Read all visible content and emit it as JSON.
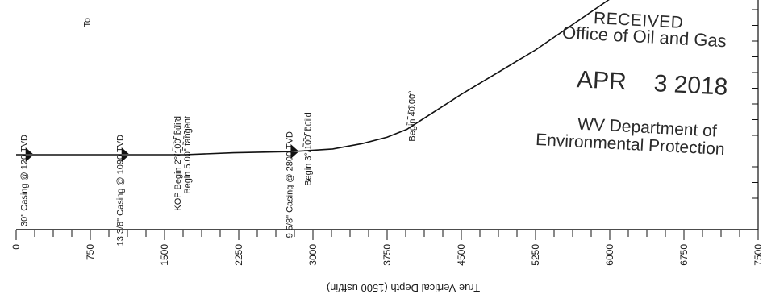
{
  "chart_data": {
    "type": "line",
    "xlabel": "True Vertical Depth (1500 usft/in)",
    "xticks": [
      "0",
      "750",
      "1500",
      "2250",
      "3000",
      "3750",
      "4500",
      "5250",
      "6000",
      "6750",
      "7500"
    ],
    "xlim": [
      0,
      7500
    ],
    "series": [
      {
        "x": [
          0,
          1500,
          1700,
          2200,
          2800,
          2900,
          3200,
          3500,
          3750,
          3950,
          4500,
          5250,
          6000
        ],
        "y": [
          0,
          0,
          0,
          6,
          10,
          12,
          18,
          35,
          55,
          80,
          190,
          330,
          490
        ]
      }
    ],
    "annotations": [
      {
        "label": "30\" Casing @ 120 TVD",
        "x": 120,
        "casing": true
      },
      {
        "label": "13 3/8\" Casing @ 1090 TVD",
        "x": 1090,
        "casing": true
      },
      {
        "label": "KOP Begin 2°/100' build",
        "x": 1580,
        "casing": false
      },
      {
        "label": "Begin 5.00° tangent",
        "x": 1680,
        "casing": false
      },
      {
        "label": "9 5/8\" Casing @ 2800 TVD",
        "x": 2800,
        "casing": true
      },
      {
        "label": "Begin 3°/100' build",
        "x": 2900,
        "casing": false
      },
      {
        "label": "Begin 40.00°",
        "x": 3950,
        "casing": false
      }
    ],
    "cut_label": "To"
  },
  "stamp": {
    "received": "RECEIVED",
    "office": "Office of Oil and Gas",
    "month": "APR",
    "day_year": "3 2018",
    "dept_line1": "WV Department of",
    "dept_line2": "Environmental Protection"
  }
}
